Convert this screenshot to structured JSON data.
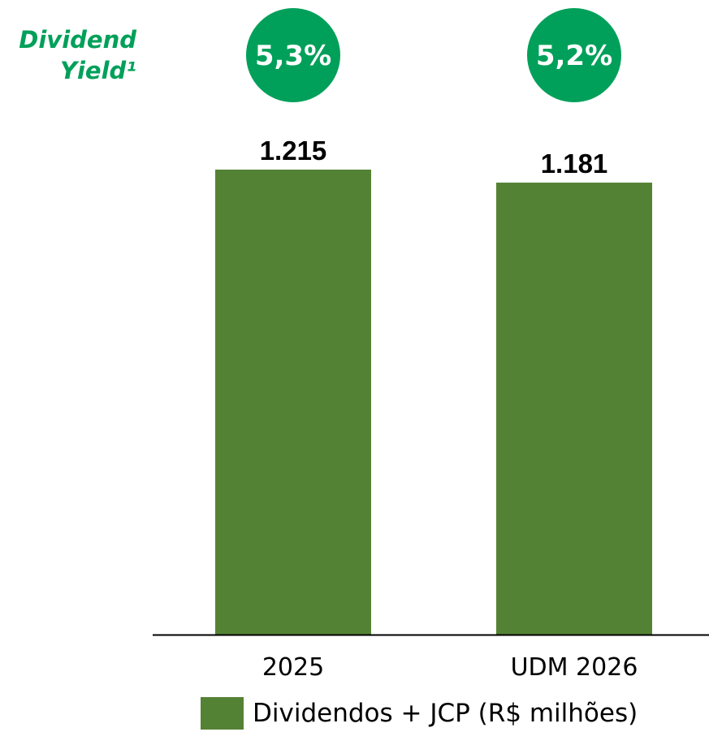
{
  "colors": {
    "bar": "#548235",
    "yield_circle": "#00A05A",
    "yield_label": "#00A05A",
    "axis": "#000000"
  },
  "dividend_yield": {
    "label_line1": "Dividend",
    "label_line2": "Yield¹",
    "values": [
      "5,3%",
      "5,2%"
    ]
  },
  "legend": {
    "label": "Dividendos + JCP (R$ milhões)"
  },
  "chart_data": {
    "type": "bar",
    "categories": [
      "2025",
      "UDM 2026"
    ],
    "values": [
      1215,
      1181
    ],
    "value_labels": [
      "1.215",
      "1.181"
    ],
    "ylim": [
      0,
      1215
    ],
    "grid": false,
    "legend_position": "bottom"
  }
}
